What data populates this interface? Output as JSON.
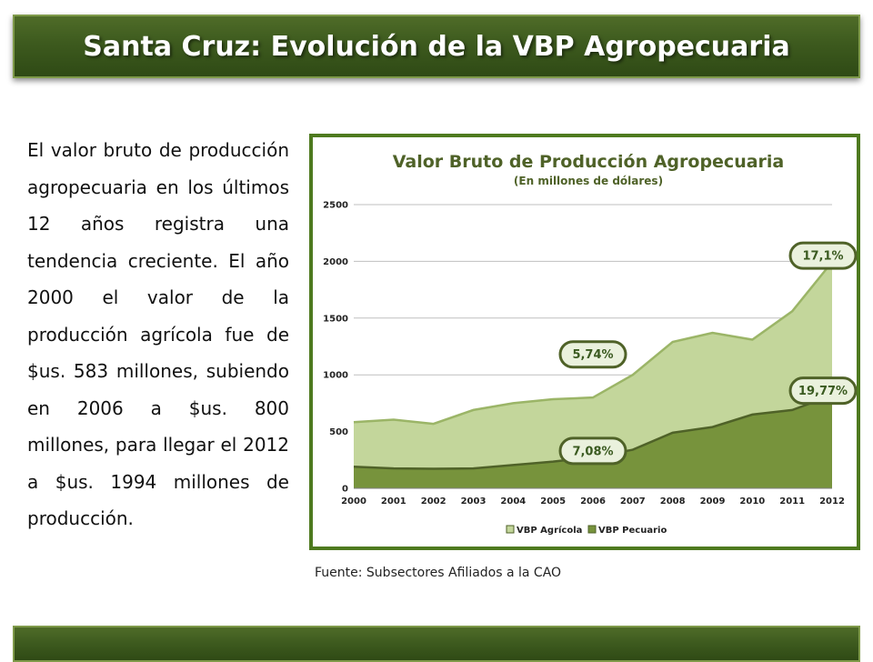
{
  "header": {
    "title": "Santa Cruz: Evolución de la VBP Agropecuaria"
  },
  "body_text": "El valor bruto de producción agropecuaria en los últimos 12 años registra una tendencia creciente. El año 2000 el valor de la producción agrícola fue de $us. 583 millones, subiendo en 2006 a $us. 800 millones, para llegar el 2012 a $us. 1994 millones de producción.",
  "source": "Fuente: Subsectores Afiliados a la CAO",
  "colors": {
    "bar": "#3d5a1e",
    "agricola": "#c3d69b",
    "pecuario": "#77933c",
    "frame": "#4e7a1f"
  },
  "chart_data": {
    "type": "area",
    "title": "Valor Bruto de Producción Agropecuaria",
    "subtitle": "(En millones de dólares)",
    "x": [
      "2000",
      "2001",
      "2002",
      "2003",
      "2004",
      "2005",
      "2006",
      "2007",
      "2008",
      "2009",
      "2010",
      "2011",
      "2012"
    ],
    "ylim": [
      0,
      2500
    ],
    "yticks": [
      0,
      500,
      1000,
      1500,
      2000,
      2500
    ],
    "grid": true,
    "legend_position": "bottom",
    "series": [
      {
        "name": "VBP Agrícola",
        "color": "#c3d69b",
        "values": [
          583,
          605,
          568,
          690,
          750,
          785,
          800,
          1000,
          1290,
          1370,
          1310,
          1560,
          1994
        ]
      },
      {
        "name": "VBP Pecuario",
        "color": "#77933c",
        "values": [
          190,
          175,
          172,
          175,
          205,
          235,
          275,
          340,
          490,
          540,
          650,
          690,
          820
        ]
      }
    ],
    "annotations": [
      {
        "text": "5,74%",
        "x": "2006",
        "y": 1180
      },
      {
        "text": "7,08%",
        "x": "2006",
        "y": 330
      },
      {
        "text": "17,1%",
        "x": "2012",
        "y": 2050
      },
      {
        "text": "19,77%",
        "x": "2012",
        "y": 860
      }
    ]
  }
}
